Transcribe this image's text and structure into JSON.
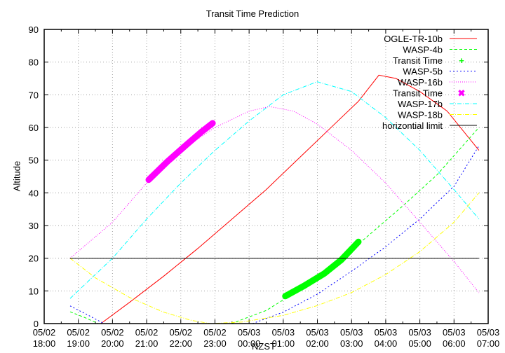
{
  "chart_data": {
    "type": "line",
    "title": "Transit Time Prediction",
    "xlabel": "NZST",
    "ylabel": "Altitude",
    "ylim": [
      0,
      90
    ],
    "yticks": [
      0,
      10,
      20,
      30,
      40,
      50,
      60,
      70,
      80,
      90
    ],
    "xlim_hours_from_0502_1800": [
      0,
      13
    ],
    "xticks": [
      {
        "h": 0,
        "l1": "05/02",
        "l2": "18:00"
      },
      {
        "h": 1,
        "l1": "05/02",
        "l2": "19:00"
      },
      {
        "h": 2,
        "l1": "05/02",
        "l2": "20:00"
      },
      {
        "h": 3,
        "l1": "05/02",
        "l2": "21:00"
      },
      {
        "h": 4,
        "l1": "05/02",
        "l2": "22:00"
      },
      {
        "h": 5,
        "l1": "05/02",
        "l2": "23:00"
      },
      {
        "h": 6,
        "l1": "05/03",
        "l2": "00:00"
      },
      {
        "h": 7,
        "l1": "05/03",
        "l2": "01:00"
      },
      {
        "h": 8,
        "l1": "05/03",
        "l2": "02:00"
      },
      {
        "h": 9,
        "l1": "05/03",
        "l2": "03:00"
      },
      {
        "h": 10,
        "l1": "05/03",
        "l2": "04:00"
      },
      {
        "h": 11,
        "l1": "05/03",
        "l2": "05:00"
      },
      {
        "h": 12,
        "l1": "05/03",
        "l2": "06:00"
      },
      {
        "h": 13,
        "l1": "05/03",
        "l2": "07:00"
      }
    ],
    "grid": true,
    "legend_position": "top-right",
    "series": [
      {
        "name": "OGLE-TR-10b",
        "color": "#ff0000",
        "dash": "",
        "points": [
          [
            1.66,
            0
          ],
          [
            2.5,
            6.5
          ],
          [
            3.5,
            14.5
          ],
          [
            4.5,
            23
          ],
          [
            5.5,
            32
          ],
          [
            6.5,
            41
          ],
          [
            7.5,
            51
          ],
          [
            8.5,
            61
          ],
          [
            9.2,
            68
          ],
          [
            9.8,
            76
          ],
          [
            10.3,
            75
          ],
          [
            11,
            71
          ],
          [
            11.8,
            65
          ],
          [
            12.73,
            53
          ]
        ]
      },
      {
        "name": "WASP-4b",
        "color": "#00ff00",
        "dash": "4,3",
        "points": [
          [
            0.76,
            3.6
          ],
          [
            1.2,
            1.8
          ],
          [
            1.58,
            0
          ]
        ],
        "points2": [
          [
            5.48,
            0
          ],
          [
            6.5,
            4
          ],
          [
            7.5,
            10.5
          ],
          [
            8.5,
            18
          ],
          [
            9.5,
            27
          ],
          [
            10.5,
            36
          ],
          [
            11.5,
            45.5
          ],
          [
            12.73,
            60
          ]
        ]
      },
      {
        "name": "Transit Time",
        "color": "#00ff00",
        "marker": "plus",
        "points": [
          [
            7.06,
            8.4
          ],
          [
            7.6,
            11.5
          ],
          [
            8.2,
            15.3
          ],
          [
            8.7,
            19.5
          ],
          [
            9.2,
            25
          ]
        ]
      },
      {
        "name": "WASP-5b",
        "color": "#0000ff",
        "dash": "2,3",
        "points": [
          [
            0.76,
            5.4
          ],
          [
            1.3,
            2.5
          ],
          [
            1.75,
            0
          ]
        ],
        "points2": [
          [
            6.1,
            0
          ],
          [
            7,
            3.5
          ],
          [
            8,
            9
          ],
          [
            9,
            16
          ],
          [
            10,
            23.5
          ],
          [
            11,
            32
          ],
          [
            12,
            42
          ],
          [
            12.73,
            54.4
          ]
        ]
      },
      {
        "name": "WASP-16b",
        "color": "#ff00ff",
        "dash": "1,2",
        "points": [
          [
            0.76,
            20
          ],
          [
            2,
            31
          ],
          [
            3,
            43
          ],
          [
            4,
            53
          ],
          [
            5,
            60
          ],
          [
            6,
            65
          ],
          [
            6.6,
            66.4
          ],
          [
            7.3,
            65
          ],
          [
            8,
            61
          ],
          [
            9,
            53
          ],
          [
            10,
            43
          ],
          [
            11,
            31
          ],
          [
            12,
            19
          ],
          [
            12.73,
            9.4
          ]
        ]
      },
      {
        "name": "Transit Time",
        "color": "#ff00ff",
        "marker": "cross",
        "points": [
          [
            3.06,
            44
          ],
          [
            3.6,
            49.5
          ],
          [
            4.2,
            55
          ],
          [
            4.6,
            58.6
          ],
          [
            4.93,
            61.3
          ]
        ]
      },
      {
        "name": "WASP-17b",
        "color": "#00ffff",
        "dash": "6,2,1,2",
        "points": [
          [
            0.76,
            7.7
          ],
          [
            2,
            20
          ],
          [
            3,
            32
          ],
          [
            4,
            43
          ],
          [
            5,
            53
          ],
          [
            6,
            62
          ],
          [
            7,
            70
          ],
          [
            7.99,
            74
          ],
          [
            9,
            71
          ],
          [
            10,
            63
          ],
          [
            11,
            53
          ],
          [
            12,
            41
          ],
          [
            12.73,
            32
          ]
        ]
      },
      {
        "name": "WASP-18b",
        "color": "#ffff00",
        "dash": "6,2,1,2",
        "points": [
          [
            0.76,
            20
          ],
          [
            1.5,
            14
          ],
          [
            2.5,
            8
          ],
          [
            3.5,
            3.5
          ],
          [
            4.3,
            1
          ],
          [
            4.87,
            0
          ],
          [
            5.8,
            0.5
          ],
          [
            7,
            2.5
          ],
          [
            8,
            5.5
          ],
          [
            9,
            9.5
          ],
          [
            10,
            15
          ],
          [
            11,
            22
          ],
          [
            12,
            31
          ],
          [
            12.73,
            40
          ]
        ]
      },
      {
        "name": "horizontial limit",
        "color": "#000000",
        "dash": "",
        "points": [
          [
            0.76,
            20
          ],
          [
            12.73,
            20
          ]
        ]
      }
    ]
  }
}
